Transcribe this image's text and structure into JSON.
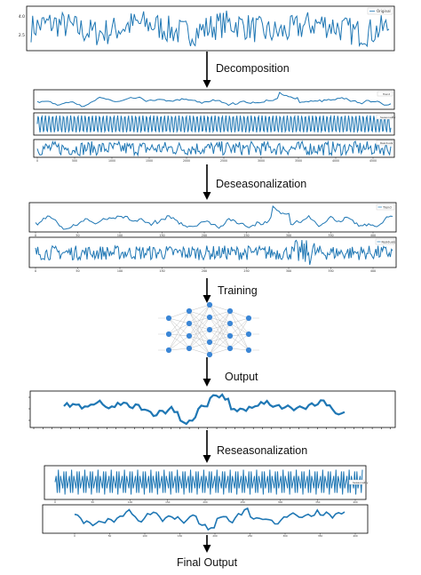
{
  "steps": {
    "decomposition": "Decomposition",
    "deseasonalization": "Deseasonalization",
    "training": "Training",
    "output": "Output",
    "reseasonalization": "Reseasonalization",
    "final_output": "Final Output"
  },
  "legends": {
    "original": "Original",
    "trend": "Trend",
    "seasonality": "Seasonality",
    "residuals": "Residuals"
  },
  "yticks": {
    "original_top": "4.0",
    "original_bottom": "2.5"
  },
  "xticks": [
    "0",
    "500",
    "1000",
    "1500",
    "2000",
    "2500",
    "3000",
    "3500",
    "4000",
    "4500"
  ],
  "xticks_short": [
    "0",
    "50",
    "100",
    "150",
    "200",
    "250",
    "300",
    "350",
    "400"
  ],
  "colors": {
    "series": "#1f77b4",
    "nodes": "#3b86d6"
  }
}
